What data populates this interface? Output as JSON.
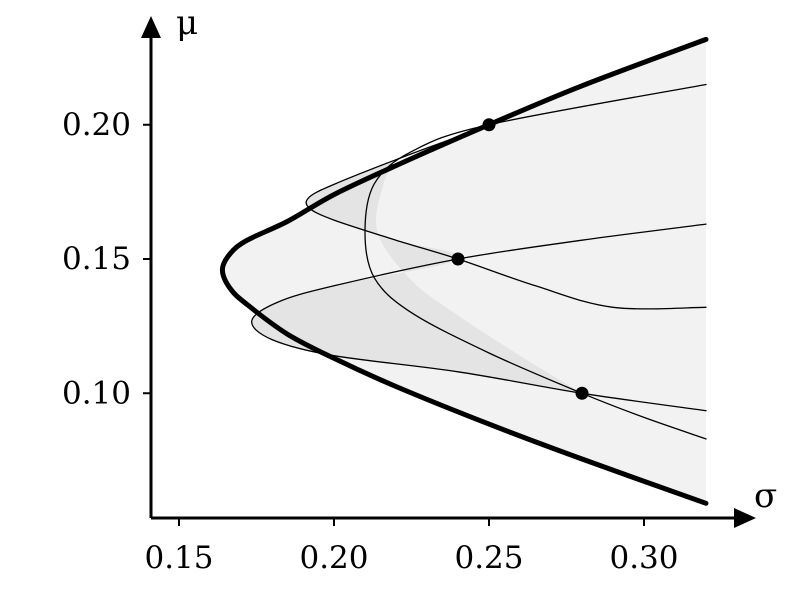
{
  "chart_data": {
    "type": "line",
    "title": "",
    "xlabel": "σ",
    "ylabel": "μ",
    "xlim": [
      0.14,
      0.32
    ],
    "ylim": [
      0.05,
      0.235
    ],
    "x_ticks": [
      0.15,
      0.2,
      0.25,
      0.3
    ],
    "y_ticks": [
      0.1,
      0.15,
      0.2
    ],
    "x_tick_labels": [
      "0.15",
      "0.20",
      "0.25",
      "0.30"
    ],
    "y_tick_labels": [
      "0.10",
      "0.15",
      "0.20"
    ],
    "grid": false,
    "legend": "none",
    "series": [
      {
        "role": "outer-frontier",
        "style": "thick",
        "points": [
          [
            0.32,
            0.2318
          ],
          [
            0.28,
            0.2145
          ],
          [
            0.25,
            0.2
          ],
          [
            0.22,
            0.1848
          ],
          [
            0.2,
            0.174
          ],
          [
            0.185,
            0.164
          ],
          [
            0.172,
            0.157
          ],
          [
            0.1665,
            0.152
          ],
          [
            0.164,
            0.146
          ],
          [
            0.1665,
            0.139
          ],
          [
            0.172,
            0.133
          ],
          [
            0.185,
            0.122
          ],
          [
            0.2,
            0.113
          ],
          [
            0.22,
            0.1025
          ],
          [
            0.25,
            0.0885
          ],
          [
            0.28,
            0.0755
          ],
          [
            0.32,
            0.059
          ]
        ]
      },
      {
        "role": "inner-frontier-a",
        "style": "thin",
        "points": [
          [
            0.32,
            0.2318
          ],
          [
            0.28,
            0.2145
          ],
          [
            0.25,
            0.2
          ],
          [
            0.22,
            0.187
          ],
          [
            0.2,
            0.1778
          ],
          [
            0.192,
            0.173
          ],
          [
            0.192,
            0.169
          ],
          [
            0.2,
            0.1645
          ],
          [
            0.22,
            0.157
          ],
          [
            0.24,
            0.15
          ],
          [
            0.265,
            0.14
          ],
          [
            0.29,
            0.132
          ],
          [
            0.32,
            0.132
          ]
        ]
      },
      {
        "role": "inner-frontier-b",
        "style": "thin",
        "points": [
          [
            0.32,
            0.215
          ],
          [
            0.25,
            0.2
          ],
          [
            0.225,
            0.19
          ],
          [
            0.213,
            0.178
          ],
          [
            0.21,
            0.16
          ],
          [
            0.213,
            0.143
          ],
          [
            0.225,
            0.13
          ],
          [
            0.25,
            0.115
          ],
          [
            0.28,
            0.1
          ],
          [
            0.3,
            0.091
          ],
          [
            0.32,
            0.083
          ]
        ]
      },
      {
        "role": "inner-frontier-c",
        "style": "thin",
        "points": [
          [
            0.32,
            0.163
          ],
          [
            0.28,
            0.157
          ],
          [
            0.24,
            0.15
          ],
          [
            0.2,
            0.14
          ],
          [
            0.182,
            0.134
          ],
          [
            0.1735,
            0.127
          ],
          [
            0.18,
            0.12
          ],
          [
            0.2,
            0.114
          ],
          [
            0.24,
            0.108
          ],
          [
            0.28,
            0.1
          ],
          [
            0.32,
            0.0935
          ]
        ]
      }
    ],
    "highlighted_points": [
      {
        "x": 0.25,
        "y": 0.2
      },
      {
        "x": 0.24,
        "y": 0.15
      },
      {
        "x": 0.28,
        "y": 0.1
      }
    ],
    "colors": {
      "outer_region_fill": "#f2f2f2",
      "inner_region_fill": "#e4e4e4",
      "line": "#000000"
    }
  }
}
